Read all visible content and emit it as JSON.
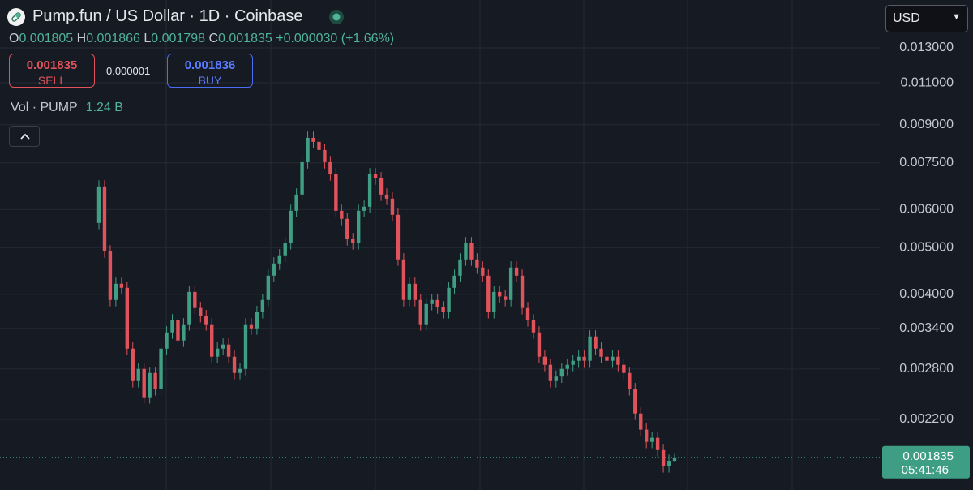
{
  "header": {
    "title": "Pump.fun / US Dollar · 1D · Coinbase",
    "ohlc": {
      "open_label": "O",
      "open": "0.001805",
      "high_label": "H",
      "high": "0.001866",
      "low_label": "L",
      "low": "0.001798",
      "close_label": "C",
      "close": "0.001835",
      "change": "+0.000030 (+1.66%)"
    }
  },
  "trade": {
    "sell_price": "0.001835",
    "sell_label": "SELL",
    "spread": "0.000001",
    "buy_price": "0.001836",
    "buy_label": "BUY"
  },
  "volume": {
    "label": "Vol · PUMP",
    "value": "1.24 B"
  },
  "currency": "USD",
  "chart_data": {
    "type": "candlestick",
    "log_scale": true,
    "grid": true,
    "up_color": "#3f9e83",
    "down_color": "#e0535b",
    "ylim": [
      0.00157,
      0.01634
    ],
    "yticks": [
      {
        "value": 0.013,
        "label": "0.013000"
      },
      {
        "value": 0.011,
        "label": "0.011000"
      },
      {
        "value": 0.009,
        "label": "0.009000"
      },
      {
        "value": 0.0075,
        "label": "0.007500"
      },
      {
        "value": 0.006,
        "label": "0.006000"
      },
      {
        "value": 0.005,
        "label": "0.005000"
      },
      {
        "value": 0.004,
        "label": "0.004000"
      },
      {
        "value": 0.0034,
        "label": "0.003400"
      },
      {
        "value": 0.0028,
        "label": "0.002800"
      },
      {
        "value": 0.0022,
        "label": "0.002200"
      }
    ],
    "open": [
      0.005628,
      0.0067,
      0.004913,
      0.003894,
      0.004208,
      0.004127,
      0.003086,
      0.002642,
      0.002801,
      0.002446,
      0.002747,
      0.002543,
      0.003086,
      0.003335,
      0.003534,
      0.003208,
      0.003467,
      0.004047,
      0.003747,
      0.003605,
      0.003467,
      0.002969,
      0.003086,
      0.003147,
      0.002969,
      0.002747,
      0.002801,
      0.003467,
      0.0034,
      0.003675,
      0.003894,
      0.004374,
      0.004636,
      0.00482,
      0.005108,
      0.005964,
      0.006446,
      0.007526,
      0.008454,
      0.008293,
      0.007977,
      0.007526,
      0.007101,
      0.005964,
      0.005739,
      0.005208,
      0.005108,
      0.005964,
      0.006082,
      0.007101,
      0.006966,
      0.006446,
      0.006322,
      0.005851,
      0.004727,
      0.003894,
      0.004208,
      0.003894,
      0.003467,
      0.003819,
      0.003894,
      0.00376,
      0.003675,
      0.004127,
      0.004374,
      0.004727,
      0.005108,
      0.004727,
      0.004548,
      0.004374,
      0.003675,
      0.004047,
      0.00396,
      0.003894,
      0.004548,
      0.004374,
      0.003747,
      0.003534,
      0.003335,
      0.002969,
      0.002856,
      0.002642,
      0.0027,
      0.002801,
      0.002856,
      0.002912,
      0.002969,
      0.002912,
      0.003271,
      0.003086,
      0.002969,
      0.002912,
      0.002969,
      0.002856,
      0.002747,
      0.002543,
      0.002263,
      0.002095,
      0.001976,
      0.002015,
      0.0019,
      0.001759,
      0.001805
    ],
    "high": [
      0.006901,
      0.006901,
      0.00506,
      0.004334,
      0.004334,
      0.004251,
      0.003179,
      0.002885,
      0.002885,
      0.002829,
      0.002829,
      0.003179,
      0.003435,
      0.00364,
      0.00364,
      0.003571,
      0.004168,
      0.004168,
      0.003859,
      0.003713,
      0.003571,
      0.003179,
      0.003241,
      0.003241,
      0.003058,
      0.002885,
      0.003571,
      0.003571,
      0.003785,
      0.004011,
      0.004505,
      0.004775,
      0.004965,
      0.005261,
      0.006143,
      0.006639,
      0.007752,
      0.008708,
      0.008708,
      0.008542,
      0.008216,
      0.007752,
      0.007314,
      0.006143,
      0.005911,
      0.005364,
      0.006143,
      0.006264,
      0.007314,
      0.007314,
      0.007175,
      0.006639,
      0.006512,
      0.006027,
      0.004869,
      0.004334,
      0.004334,
      0.004011,
      0.003934,
      0.004011,
      0.004011,
      0.003873,
      0.004251,
      0.004505,
      0.004869,
      0.005261,
      0.005261,
      0.004869,
      0.004684,
      0.004505,
      0.004168,
      0.004168,
      0.004079,
      0.004684,
      0.004684,
      0.004505,
      0.003859,
      0.00364,
      0.003435,
      0.003058,
      0.002942,
      0.002781,
      0.002885,
      0.002942,
      0.002999,
      0.003058,
      0.003058,
      0.003369,
      0.003369,
      0.003179,
      0.003058,
      0.003058,
      0.003058,
      0.002942,
      0.002829,
      0.002619,
      0.002331,
      0.002158,
      0.002075,
      0.002075,
      0.001957,
      0.001859,
      0.001866
    ],
    "low": [
      0.005459,
      0.004766,
      0.003777,
      0.003777,
      0.004003,
      0.002993,
      0.002563,
      0.002563,
      0.002373,
      0.002373,
      0.002467,
      0.002467,
      0.002993,
      0.003235,
      0.003112,
      0.003112,
      0.003363,
      0.003635,
      0.003497,
      0.003363,
      0.00288,
      0.00288,
      0.002993,
      0.00288,
      0.002665,
      0.002665,
      0.002717,
      0.003298,
      0.003298,
      0.003565,
      0.003777,
      0.004243,
      0.004497,
      0.004675,
      0.004955,
      0.005785,
      0.006253,
      0.0073,
      0.008044,
      0.007738,
      0.0073,
      0.006888,
      0.005785,
      0.005567,
      0.005052,
      0.004955,
      0.004955,
      0.005785,
      0.0059,
      0.006757,
      0.006253,
      0.006132,
      0.005675,
      0.004585,
      0.003777,
      0.003777,
      0.003777,
      0.003363,
      0.003363,
      0.003704,
      0.003647,
      0.003565,
      0.003565,
      0.004003,
      0.004243,
      0.004585,
      0.004585,
      0.004412,
      0.004243,
      0.003565,
      0.003565,
      0.003841,
      0.003777,
      0.003777,
      0.004243,
      0.003635,
      0.003428,
      0.003235,
      0.00288,
      0.00277,
      0.002563,
      0.002563,
      0.002619,
      0.002717,
      0.00277,
      0.002825,
      0.002825,
      0.002825,
      0.002993,
      0.00288,
      0.002825,
      0.002825,
      0.00277,
      0.002665,
      0.002467,
      0.002195,
      0.002032,
      0.001917,
      0.001917,
      0.001843,
      0.001706,
      0.001706,
      0.001798
    ],
    "close": [
      0.0067,
      0.004913,
      0.003894,
      0.004208,
      0.004127,
      0.003086,
      0.002642,
      0.002801,
      0.002446,
      0.002747,
      0.002543,
      0.003086,
      0.003335,
      0.003534,
      0.003208,
      0.003467,
      0.004047,
      0.003747,
      0.003605,
      0.003467,
      0.002969,
      0.003086,
      0.003147,
      0.002969,
      0.002747,
      0.002801,
      0.003467,
      0.0034,
      0.003675,
      0.003894,
      0.004374,
      0.004636,
      0.00482,
      0.005108,
      0.005964,
      0.006446,
      0.007526,
      0.008454,
      0.008293,
      0.007977,
      0.007526,
      0.007101,
      0.005964,
      0.005739,
      0.005208,
      0.005108,
      0.005964,
      0.006082,
      0.007101,
      0.006966,
      0.006446,
      0.006322,
      0.005851,
      0.004727,
      0.003894,
      0.004208,
      0.003894,
      0.003467,
      0.003819,
      0.003894,
      0.00376,
      0.003675,
      0.004127,
      0.004374,
      0.004727,
      0.005108,
      0.004727,
      0.004548,
      0.004374,
      0.003675,
      0.004047,
      0.00396,
      0.003894,
      0.004548,
      0.004374,
      0.003747,
      0.003534,
      0.003335,
      0.002969,
      0.002856,
      0.002642,
      0.0027,
      0.002801,
      0.002856,
      0.002912,
      0.002969,
      0.002912,
      0.003271,
      0.003086,
      0.002969,
      0.002912,
      0.002969,
      0.002856,
      0.002747,
      0.002543,
      0.002263,
      0.002095,
      0.001976,
      0.002015,
      0.0019,
      0.001759,
      0.001805,
      0.001835
    ],
    "price_line": {
      "value": 0.001835,
      "countdown": "05:41:46",
      "color": "#3e9e84"
    }
  }
}
